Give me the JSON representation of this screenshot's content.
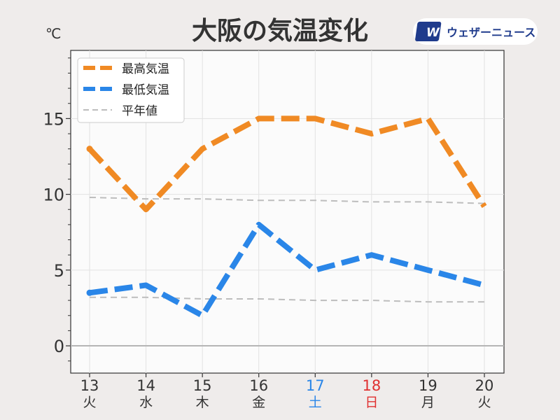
{
  "chart_data": {
    "type": "line",
    "title": "大阪の気温変化",
    "unit_label": "℃",
    "brand": "ウェザーニュース",
    "brand_logo_text": "WN",
    "categories": [
      "13",
      "14",
      "15",
      "16",
      "17",
      "18",
      "19",
      "20"
    ],
    "weekdays": [
      "火",
      "水",
      "木",
      "金",
      "土",
      "日",
      "月",
      "火"
    ],
    "ylim": [
      -1.8,
      19.5
    ],
    "yticks": [
      0,
      5,
      10,
      15
    ],
    "grid": true,
    "legend_position": "top-left",
    "series": [
      {
        "name": "最高気温",
        "color": "#f08a24",
        "style": "thick-dash",
        "values": [
          13,
          9,
          13,
          15,
          15,
          14,
          15,
          9.2
        ]
      },
      {
        "name": "最低気温",
        "color": "#2a86e8",
        "style": "thick-dash",
        "values": [
          3.5,
          4,
          2,
          8,
          5,
          6,
          5,
          4
        ]
      },
      {
        "name": "平年値",
        "color": "#bdbdbd",
        "style": "thin-dash",
        "values": [
          9.8,
          9.7,
          9.7,
          9.6,
          9.6,
          9.5,
          9.5,
          9.4
        ]
      },
      {
        "name": "",
        "color": "#bdbdbd",
        "style": "thin-dash",
        "values": [
          3.2,
          3.2,
          3.1,
          3.1,
          3.0,
          3.0,
          2.9,
          2.9
        ]
      }
    ],
    "colors": {
      "saturday": "#2a86e8",
      "sunday": "#e03030",
      "normal_label": "#333333"
    }
  }
}
